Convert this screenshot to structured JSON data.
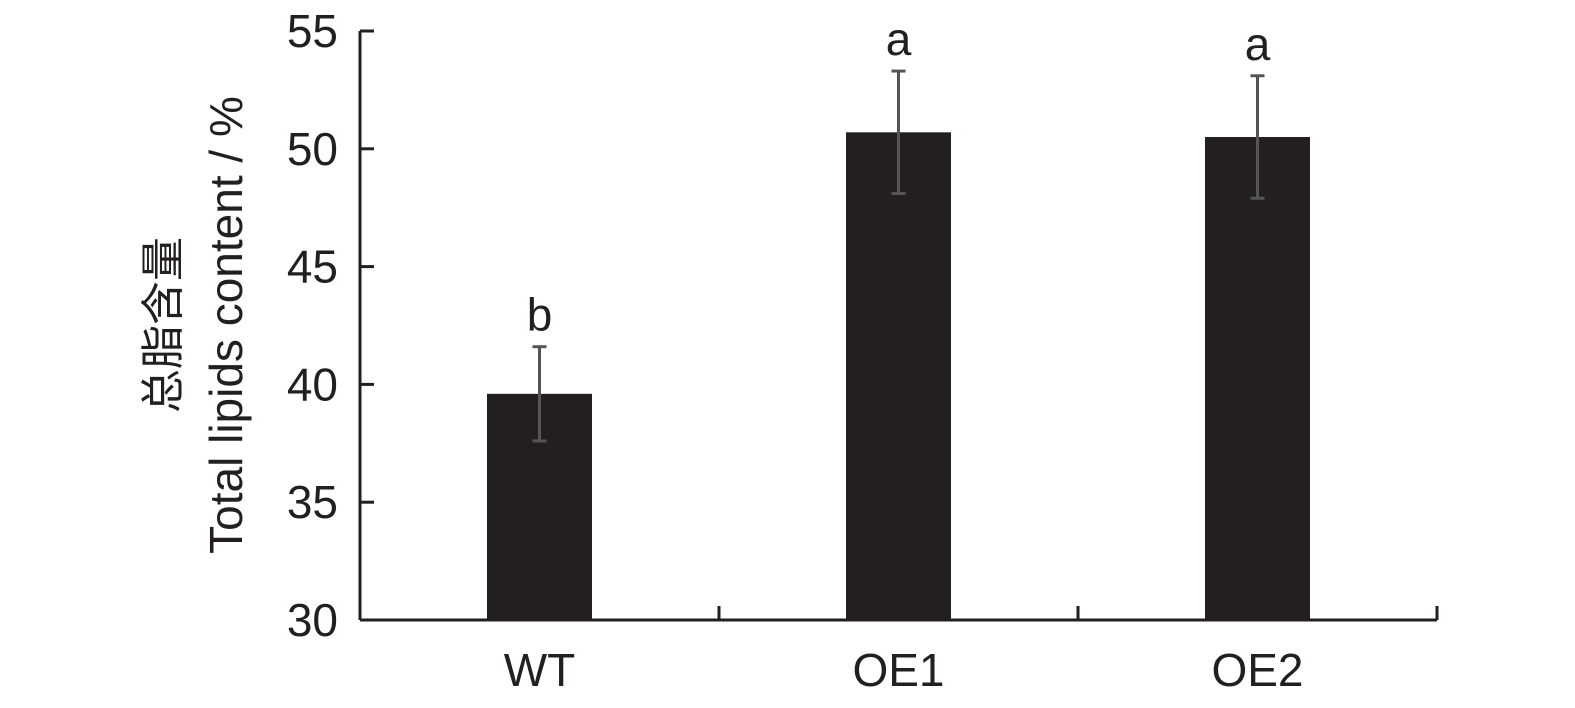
{
  "chart_data": {
    "type": "bar",
    "categories": [
      "WT",
      "OE1",
      "OE2"
    ],
    "values": [
      39.6,
      50.7,
      50.5
    ],
    "errors": [
      2.0,
      2.6,
      2.6
    ],
    "significance": [
      "b",
      "a",
      "a"
    ],
    "ylabel_cn": "总脂含量",
    "ylabel_en": "Total lipids content / %",
    "ylim": [
      30,
      55
    ],
    "yticks": [
      30,
      35,
      40,
      45,
      50,
      55
    ],
    "grid": false,
    "bar_color": "#231f20",
    "error_color": "#555555",
    "axis_color": "#231f20"
  }
}
